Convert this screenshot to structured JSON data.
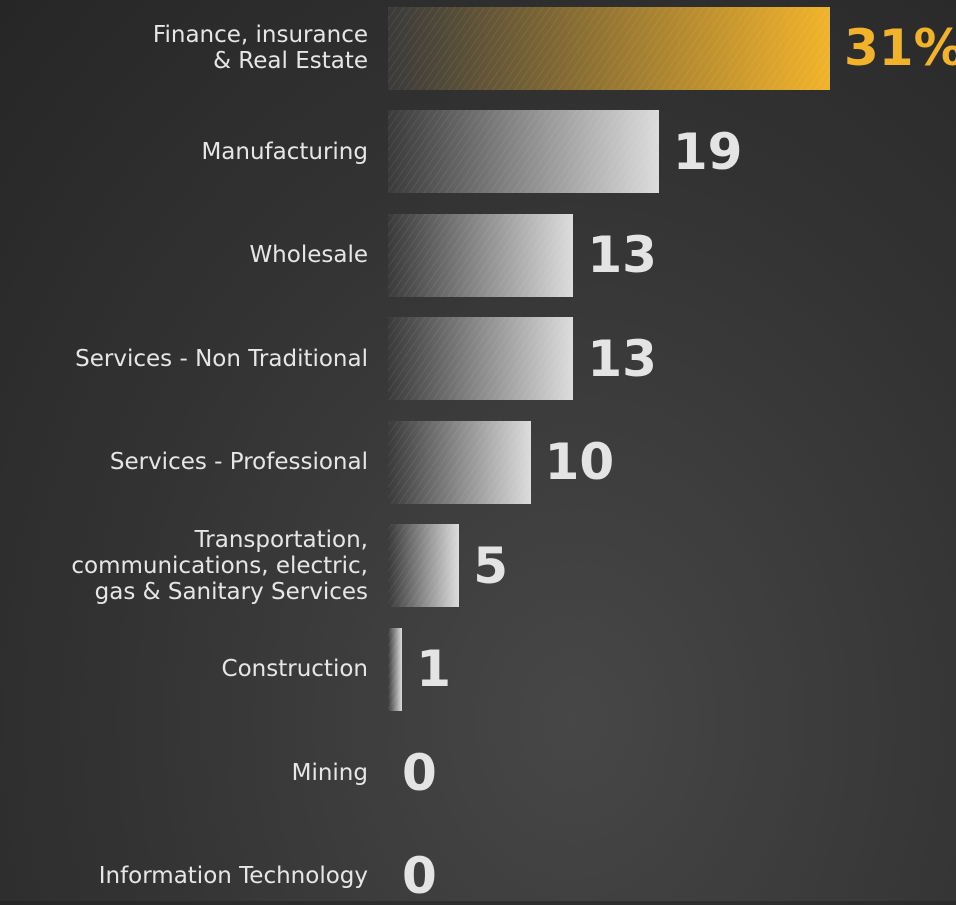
{
  "chart_data": {
    "type": "bar",
    "orientation": "horizontal",
    "categories": [
      "Finance, insurance\n& Real Estate",
      "Manufacturing",
      "Wholesale",
      "Services - Non Traditional",
      "Services - Professional",
      "Transportation,\ncommunications, electric,\ngas & Sanitary Services",
      "Construction",
      "Mining",
      "Information Technology"
    ],
    "values": [
      31,
      19,
      13,
      13,
      10,
      5,
      1,
      0,
      0
    ],
    "value_labels": [
      "31%",
      "19",
      "13",
      "13",
      "10",
      "5",
      "1",
      "0",
      "0"
    ],
    "colors": [
      "#f2b32a",
      "#dcdcdc",
      "#dcdcdc",
      "#dcdcdc",
      "#dcdcdc",
      "#dcdcdc",
      "#dcdcdc",
      "#dcdcdc",
      "#dcdcdc"
    ]
  }
}
